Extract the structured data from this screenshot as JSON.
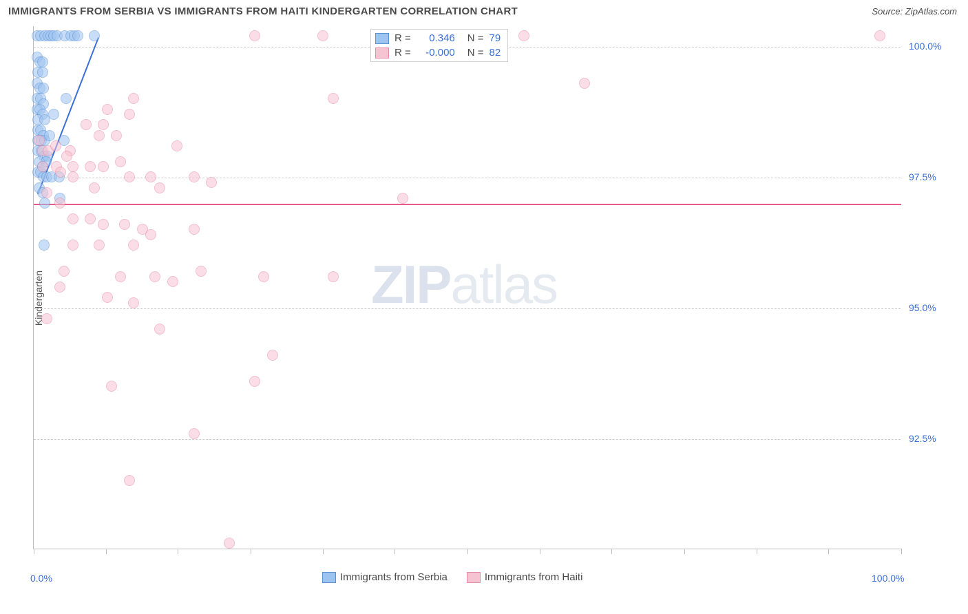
{
  "title": "IMMIGRANTS FROM SERBIA VS IMMIGRANTS FROM HAITI KINDERGARTEN CORRELATION CHART",
  "source": "Source: ZipAtlas.com",
  "ylabel": "Kindergarten",
  "watermark": {
    "part1": "ZIP",
    "part2": "atlas"
  },
  "chart": {
    "type": "scatter",
    "xlim": [
      0,
      100
    ],
    "ylim": [
      90.4,
      100.4
    ],
    "y_gridlines": [
      92.5,
      95.0,
      97.5,
      100.0
    ],
    "y_tick_labels": [
      "92.5%",
      "95.0%",
      "97.5%",
      "100.0%"
    ],
    "x_ticks": [
      0,
      8.3,
      16.6,
      25,
      33.3,
      41.6,
      50,
      58.3,
      66.6,
      75,
      83.3,
      91.6,
      100
    ],
    "x_min_label": "0.0%",
    "x_max_label": "100.0%",
    "background_color": "#ffffff",
    "grid_color": "#cccccc",
    "axis_label_color": "#3b6fd6",
    "marker_radius": 8,
    "marker_opacity": 0.55,
    "series": [
      {
        "name": "Immigrants from Serbia",
        "fill_color": "#9dc3f0",
        "stroke_color": "#5a94d8",
        "r_value": "0.346",
        "n_value": "79",
        "regression": {
          "x1": 0.5,
          "y1": 97.2,
          "x2": 7.5,
          "y2": 100.2,
          "color": "#3b6fd6"
        },
        "points": [
          [
            0.4,
            100.2
          ],
          [
            0.8,
            100.2
          ],
          [
            1.3,
            100.2
          ],
          [
            1.7,
            100.2
          ],
          [
            2.0,
            100.2
          ],
          [
            2.3,
            100.2
          ],
          [
            2.7,
            100.2
          ],
          [
            3.6,
            100.2
          ],
          [
            4.3,
            100.2
          ],
          [
            4.7,
            100.2
          ],
          [
            5.1,
            100.2
          ],
          [
            7.0,
            100.2
          ],
          [
            0.4,
            99.8
          ],
          [
            0.7,
            99.7
          ],
          [
            1.0,
            99.7
          ],
          [
            0.5,
            99.5
          ],
          [
            1.0,
            99.5
          ],
          [
            0.4,
            99.3
          ],
          [
            0.7,
            99.2
          ],
          [
            1.1,
            99.2
          ],
          [
            0.4,
            99.0
          ],
          [
            0.8,
            99.0
          ],
          [
            1.1,
            98.9
          ],
          [
            0.4,
            98.8
          ],
          [
            0.7,
            98.8
          ],
          [
            1.0,
            98.7
          ],
          [
            0.5,
            98.6
          ],
          [
            1.3,
            98.6
          ],
          [
            2.3,
            98.7
          ],
          [
            3.7,
            99.0
          ],
          [
            0.5,
            98.4
          ],
          [
            0.8,
            98.4
          ],
          [
            1.1,
            98.3
          ],
          [
            0.5,
            98.2
          ],
          [
            0.9,
            98.2
          ],
          [
            1.3,
            98.2
          ],
          [
            1.8,
            98.3
          ],
          [
            3.5,
            98.2
          ],
          [
            0.5,
            98.0
          ],
          [
            0.9,
            98.0
          ],
          [
            1.2,
            97.9
          ],
          [
            1.6,
            97.9
          ],
          [
            0.6,
            97.8
          ],
          [
            1.0,
            97.7
          ],
          [
            1.4,
            97.8
          ],
          [
            0.5,
            97.6
          ],
          [
            0.8,
            97.6
          ],
          [
            1.1,
            97.5
          ],
          [
            1.5,
            97.5
          ],
          [
            2.1,
            97.5
          ],
          [
            2.9,
            97.5
          ],
          [
            0.6,
            97.3
          ],
          [
            1.0,
            97.2
          ],
          [
            3.0,
            97.1
          ],
          [
            1.2,
            96.2
          ],
          [
            1.3,
            97.0
          ]
        ]
      },
      {
        "name": "Immigrants from Haiti",
        "fill_color": "#f6c3d2",
        "stroke_color": "#e88ba7",
        "r_value": "-0.000",
        "n_value": "82",
        "regression": {
          "x1": 0,
          "y1": 97.0,
          "x2": 100,
          "y2": 97.0,
          "color": "#e75a8a"
        },
        "points": [
          [
            25.5,
            100.2
          ],
          [
            33.3,
            100.2
          ],
          [
            56.5,
            100.2
          ],
          [
            97.5,
            100.2
          ],
          [
            63.5,
            99.3
          ],
          [
            11.5,
            99.0
          ],
          [
            34.5,
            99.0
          ],
          [
            8.5,
            98.8
          ],
          [
            11.0,
            98.7
          ],
          [
            6.0,
            98.5
          ],
          [
            8.0,
            98.5
          ],
          [
            10.0,
            97.8
          ],
          [
            0.6,
            98.2
          ],
          [
            1.0,
            98.0
          ],
          [
            1.7,
            98.0
          ],
          [
            4.2,
            98.0
          ],
          [
            7.5,
            98.3
          ],
          [
            9.5,
            98.3
          ],
          [
            16.5,
            98.1
          ],
          [
            2.5,
            98.1
          ],
          [
            3.8,
            97.9
          ],
          [
            1.0,
            97.7
          ],
          [
            2.6,
            97.7
          ],
          [
            3.1,
            97.6
          ],
          [
            4.5,
            97.7
          ],
          [
            6.5,
            97.7
          ],
          [
            8.0,
            97.7
          ],
          [
            4.5,
            97.5
          ],
          [
            7.0,
            97.3
          ],
          [
            11.0,
            97.5
          ],
          [
            13.5,
            97.5
          ],
          [
            18.5,
            97.5
          ],
          [
            20.5,
            97.4
          ],
          [
            14.5,
            97.3
          ],
          [
            1.5,
            97.2
          ],
          [
            3.0,
            97.0
          ],
          [
            42.5,
            97.1
          ],
          [
            4.5,
            96.7
          ],
          [
            6.5,
            96.7
          ],
          [
            8.0,
            96.6
          ],
          [
            10.5,
            96.6
          ],
          [
            11.5,
            96.2
          ],
          [
            12.5,
            96.5
          ],
          [
            13.5,
            96.4
          ],
          [
            18.5,
            96.5
          ],
          [
            4.5,
            96.2
          ],
          [
            7.5,
            96.2
          ],
          [
            3.5,
            95.7
          ],
          [
            3.0,
            95.4
          ],
          [
            10.0,
            95.6
          ],
          [
            14.0,
            95.6
          ],
          [
            16.0,
            95.5
          ],
          [
            19.3,
            95.7
          ],
          [
            26.5,
            95.6
          ],
          [
            34.5,
            95.6
          ],
          [
            8.5,
            95.2
          ],
          [
            11.5,
            95.1
          ],
          [
            1.5,
            94.8
          ],
          [
            14.5,
            94.6
          ],
          [
            27.5,
            94.1
          ],
          [
            9.0,
            93.5
          ],
          [
            25.5,
            93.6
          ],
          [
            18.5,
            92.6
          ],
          [
            11.0,
            91.7
          ],
          [
            22.5,
            90.5
          ]
        ]
      }
    ]
  },
  "legend_top": {
    "r_label": "R =",
    "n_label": "N ="
  },
  "legend_bottom_labels": [
    "Immigrants from Serbia",
    "Immigrants from Haiti"
  ]
}
